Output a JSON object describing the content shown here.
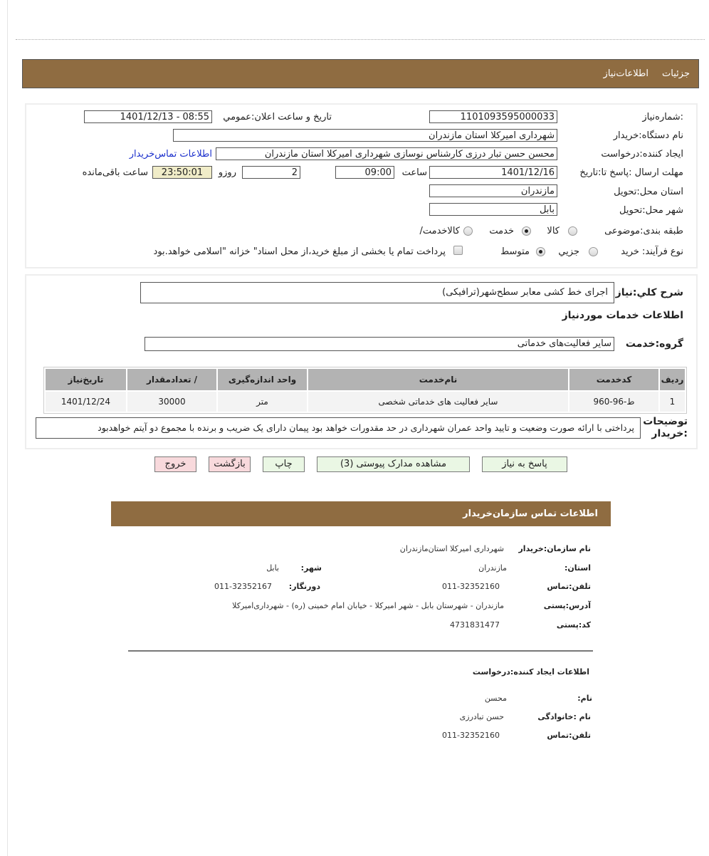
{
  "header": {
    "tab_details": "جزئیات",
    "tab_info": "اطلاعات‌نیاز"
  },
  "form": {
    "need_number_label": "شماره‌نیاز:",
    "need_number": "1101093595000033",
    "announce_label": "تاریخ و ساعت اعلان:عمومي",
    "announce_value": "1401/12/13 - 08:55",
    "buyer_org_label": "نام دستگاه:خریدار",
    "buyer_org": "شهرداری امیرکلا استان مازندران",
    "creator_label": "ایجاد کننده:درخواست",
    "creator": "محسن حسن تبار درزی کارشناس نوسازی شهرداری امیرکلا استان مازندران",
    "contact_link": "اطلاعات تماس‌خریدار",
    "deadline_label": "مهلت ارسال :پاسخ تا:تاریخ",
    "deadline_date": "1401/12/16",
    "time_label": "ساعت",
    "deadline_time": "09:00",
    "days": "2",
    "days_label": "روزو",
    "remaining": "23:50:01",
    "remaining_label": "ساعت باقی‌مانده",
    "province_label": "استان محل:تحویل",
    "province": "مازندران",
    "city_label": "شهر محل:تحویل",
    "city": "بابل",
    "category_label": "طبقه بندی:موضوعی",
    "category_options": [
      "کالا",
      "خدمت",
      "/کالاخدمت"
    ],
    "category_selected": "خدمت",
    "process_label": "نوع فرآیند: خرید",
    "process_options": [
      "جزیي",
      "متوسط"
    ],
    "process_selected": "متوسط",
    "treasury_note": "پرداخت تمام یا بخشی از مبلغ خرید،از محل اسناد\" خزانه \"اسلامی خواهد.بود",
    "treasury_checked": false
  },
  "services": {
    "summary_label": "شرح کلي:نیاز",
    "summary": "اجرای خط کشی معابر سطح‌شهر(ترافیکی)",
    "section_title": "اطلاعات خدمات موردنیاز",
    "group_label": "گروه:خدمت",
    "group": "سایر فعالیت‌های خدماتی",
    "table": {
      "headers": [
        "ردیف",
        "کدخدمت",
        "نام‌خدمت",
        "واحد  اندازه‌گیری",
        "/ تعدادمقدار",
        "تاریخ‌نیاز"
      ],
      "rows": [
        [
          "1",
          "ط-96-960",
          "سایر فعالیت های خدماتی شخصی",
          "متر",
          "30000",
          "1401/12/24"
        ]
      ]
    },
    "buyer_notes_label": "توضیحات :خریدار",
    "buyer_notes": "پرداختی با ارائه صورت وضعیت و تایید واحد عمران شهرداری در حد مقدورات خواهد بود پیمان دارای یک ضریب و برنده با مجموع دو آیتم خواهدبود"
  },
  "buttons": {
    "reply": "پاسخ به نیاز",
    "attachments": "مشاهده مدارک پیوستی (3)",
    "print": "چاپ",
    "back": "بازگشت",
    "exit": "خروج"
  },
  "contact": {
    "title": "اطلاعات  تماس سازمان‌خریدار",
    "org_label": "نام سازمان:خریدار",
    "org": "شهرداری امیرکلا استان‌مازندران",
    "province_label": ":استان",
    "province": "مازندران",
    "city_label": ":شهر",
    "city": "بابل",
    "phone_label": "تلفن:تماس",
    "phone": "011-32352160",
    "fax_label": ":دورنگار",
    "fax": "011-32352167",
    "address_label": "آدرس:پستی",
    "address": "مازندران - شهرستان بابل - شهر امیرکلا - خیابان امام خمینی (ره) - شهرداری‌امیرکلا",
    "postal_label": "کد:پستی",
    "postal": "4731831477",
    "creator_title": "اطلاعات  ایجاد کننده:درخواست",
    "name_label": ":نام",
    "name": "محسن",
    "family_label": "نام :خانوادگی",
    "family": "حسن تبادرزی",
    "creator_phone_label": "تلفن:تماس",
    "creator_phone": "011-32352160"
  },
  "colors": {
    "header_bar": "#8f6c41",
    "timer_bg": "#f0ecc8",
    "button_green": "#eaf7e4",
    "button_pink": "#f8d9dc",
    "link": "#1a2fcc"
  }
}
